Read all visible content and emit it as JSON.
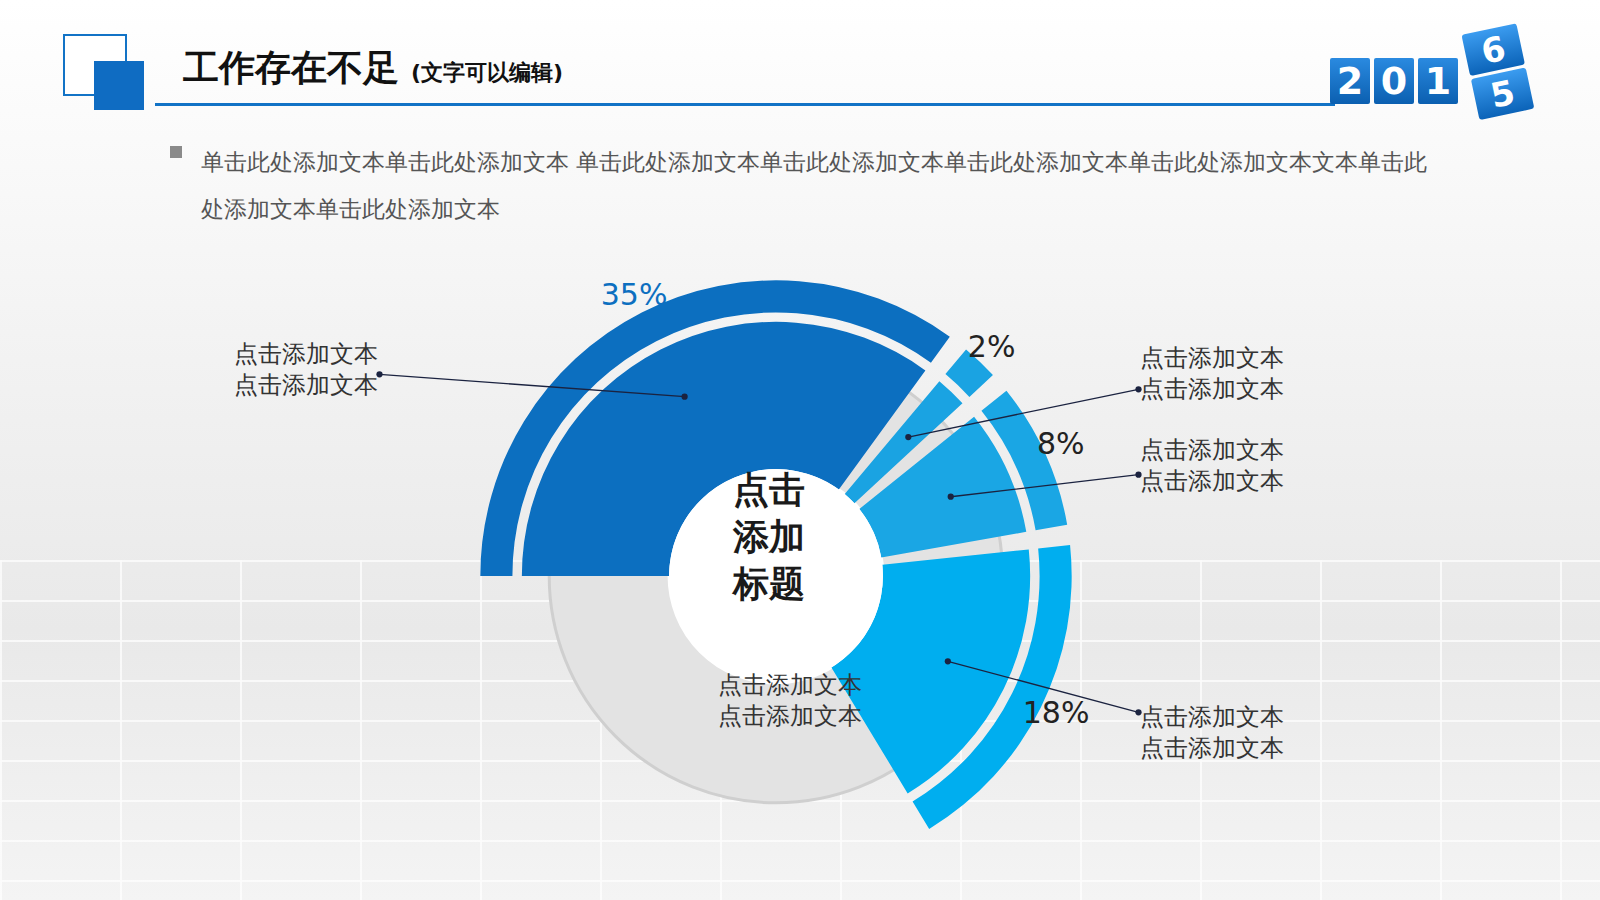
{
  "header": {
    "title": "工作存在不足",
    "subtitle": "(文字可以编辑)",
    "badge": {
      "digits": [
        "2",
        "0",
        "1"
      ],
      "cube": [
        "6",
        "5"
      ]
    }
  },
  "body": {
    "bullet": "单击此处添加文本单击此处添加文本 单击此处添加文本单击此处添加文本单击此处添加文本单击此处添加文本文本单击此处添加文本单击此处添加文本"
  },
  "chart_data": {
    "type": "radial_bar",
    "segment_labels": [
      [
        "点击添加文本",
        "点击添加文本"
      ],
      [
        "点击添加文本",
        "点击添加文本"
      ],
      [
        "点击添加文本",
        "点击添加文本"
      ],
      [
        "点击添加文本",
        "点击添加文本"
      ]
    ],
    "values": [
      35,
      2,
      8,
      18
    ],
    "value_labels": [
      "35%",
      "2%",
      "8%",
      "18%"
    ],
    "colors": [
      "#0c6fc0",
      "#1aa3e2",
      "#1aa6e4",
      "#00aeef"
    ],
    "data_labels": true,
    "tick_labels": false,
    "center": {
      "title_lines": [
        "点击",
        "添加",
        "标题"
      ],
      "text_lines": [
        "点击添加文本",
        "点击添加文本"
      ]
    }
  }
}
